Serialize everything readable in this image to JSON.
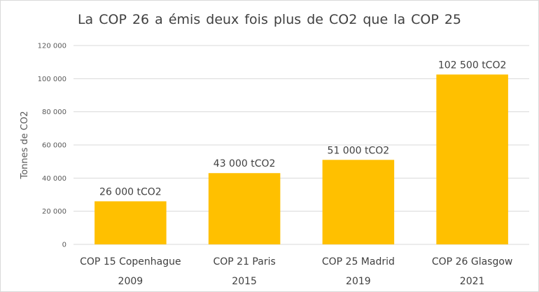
{
  "chart_data": {
    "type": "bar",
    "title": "La COP 26 a émis deux fois plus de CO2 que la COP 25",
    "ylabel": "Tonnes de CO2",
    "xlabel": "",
    "ylim": [
      0,
      120000
    ],
    "yticks": [
      0,
      20000,
      40000,
      60000,
      80000,
      100000,
      120000
    ],
    "ytick_labels": [
      "0",
      "20 000",
      "40 000",
      "60 000",
      "80 000",
      "100 000",
      "120 000"
    ],
    "grid": true,
    "bar_color": "#FFC000",
    "categories": [
      {
        "name": "COP 15 Copenhague",
        "year": "2009"
      },
      {
        "name": "COP 21 Paris",
        "year": "2015"
      },
      {
        "name": "COP 25 Madrid",
        "year": "2019"
      },
      {
        "name": "COP 26 Glasgow",
        "year": "2021"
      }
    ],
    "values": [
      26000,
      43000,
      51000,
      102500
    ],
    "data_labels": [
      "26 000 tCO2",
      "43 000 tCO2",
      "51 000 tCO2",
      "102 500 tCO2"
    ]
  }
}
